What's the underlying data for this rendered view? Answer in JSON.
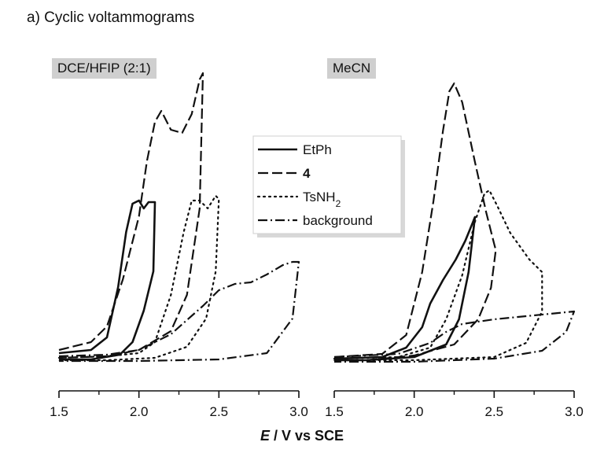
{
  "figure_title": "a) Cyclic voltammograms",
  "xlabel": {
    "variable": "E",
    "rest": " / V vs SCE"
  },
  "legend": {
    "entries": [
      {
        "key": "EtPh",
        "text": "EtPh",
        "style": "solid"
      },
      {
        "key": "4",
        "text": "4",
        "style": "dashed",
        "bold": true
      },
      {
        "key": "TsNH2",
        "text": "TsNH",
        "sub": "2",
        "style": "dotted"
      },
      {
        "key": "background",
        "text": "background",
        "style": "dashdot"
      }
    ]
  },
  "chart_data": [
    {
      "type": "line",
      "panel_label": "DCE/HFIP (2:1)",
      "xlim": [
        1.5,
        3.0
      ],
      "x_ticks": [
        "1.5",
        "2.0",
        "2.5",
        "3.0"
      ],
      "y_axis_visible": false,
      "series": [
        {
          "key": "EtPh",
          "style": "solid",
          "points": [
            [
              1.5,
              0.08
            ],
            [
              1.7,
              0.1
            ],
            [
              1.8,
              0.18
            ],
            [
              1.87,
              0.5
            ],
            [
              1.92,
              0.85
            ],
            [
              1.96,
              1.03
            ],
            [
              2.0,
              1.05
            ],
            [
              2.03,
              1.0
            ],
            [
              2.06,
              1.04
            ],
            [
              2.1,
              1.04
            ],
            [
              2.09,
              0.6
            ],
            [
              2.03,
              0.35
            ],
            [
              1.96,
              0.15
            ],
            [
              1.88,
              0.07
            ],
            [
              1.7,
              0.04
            ],
            [
              1.5,
              0.04
            ]
          ]
        },
        {
          "key": "4",
          "style": "dashed",
          "points": [
            [
              1.5,
              0.1
            ],
            [
              1.7,
              0.15
            ],
            [
              1.8,
              0.25
            ],
            [
              1.9,
              0.55
            ],
            [
              2.0,
              0.95
            ],
            [
              2.05,
              1.3
            ],
            [
              2.1,
              1.55
            ],
            [
              2.14,
              1.62
            ],
            [
              2.2,
              1.5
            ],
            [
              2.27,
              1.48
            ],
            [
              2.33,
              1.6
            ],
            [
              2.38,
              1.82
            ],
            [
              2.4,
              1.86
            ],
            [
              2.38,
              1.0
            ],
            [
              2.3,
              0.45
            ],
            [
              2.2,
              0.22
            ],
            [
              2.0,
              0.1
            ],
            [
              1.8,
              0.06
            ],
            [
              1.5,
              0.05
            ]
          ]
        },
        {
          "key": "TsNH2",
          "style": "dotted",
          "points": [
            [
              1.5,
              0.05
            ],
            [
              1.8,
              0.06
            ],
            [
              2.0,
              0.08
            ],
            [
              2.1,
              0.15
            ],
            [
              2.2,
              0.45
            ],
            [
              2.28,
              0.85
            ],
            [
              2.33,
              1.05
            ],
            [
              2.38,
              1.05
            ],
            [
              2.43,
              1.0
            ],
            [
              2.48,
              1.08
            ],
            [
              2.5,
              1.06
            ],
            [
              2.48,
              0.6
            ],
            [
              2.42,
              0.3
            ],
            [
              2.3,
              0.12
            ],
            [
              2.1,
              0.05
            ],
            [
              1.8,
              0.035
            ],
            [
              1.5,
              0.035
            ]
          ]
        },
        {
          "key": "background",
          "style": "dashdot",
          "points": [
            [
              1.5,
              0.06
            ],
            [
              1.8,
              0.07
            ],
            [
              2.0,
              0.1
            ],
            [
              2.2,
              0.2
            ],
            [
              2.4,
              0.38
            ],
            [
              2.5,
              0.48
            ],
            [
              2.6,
              0.52
            ],
            [
              2.7,
              0.53
            ],
            [
              2.8,
              0.58
            ],
            [
              2.9,
              0.64
            ],
            [
              2.96,
              0.66
            ],
            [
              3.0,
              0.66
            ],
            [
              2.96,
              0.3
            ],
            [
              2.8,
              0.08
            ],
            [
              2.5,
              0.04
            ],
            [
              2.0,
              0.03
            ],
            [
              1.5,
              0.03
            ]
          ]
        }
      ]
    },
    {
      "type": "line",
      "panel_label": "MeCN",
      "xlim": [
        1.5,
        3.0
      ],
      "x_ticks": [
        "1.5",
        "2.0",
        "2.5",
        "3.0"
      ],
      "y_axis_visible": false,
      "series": [
        {
          "key": "EtPh",
          "style": "solid",
          "points": [
            [
              1.5,
              0.05
            ],
            [
              1.8,
              0.06
            ],
            [
              1.95,
              0.12
            ],
            [
              2.05,
              0.25
            ],
            [
              2.1,
              0.4
            ],
            [
              2.18,
              0.55
            ],
            [
              2.26,
              0.68
            ],
            [
              2.32,
              0.8
            ],
            [
              2.36,
              0.9
            ],
            [
              2.38,
              0.95
            ],
            [
              2.34,
              0.6
            ],
            [
              2.28,
              0.3
            ],
            [
              2.2,
              0.14
            ],
            [
              2.0,
              0.06
            ],
            [
              1.7,
              0.04
            ],
            [
              1.5,
              0.04
            ]
          ]
        },
        {
          "key": "4",
          "style": "dashed",
          "points": [
            [
              1.5,
              0.06
            ],
            [
              1.8,
              0.08
            ],
            [
              1.95,
              0.2
            ],
            [
              2.05,
              0.6
            ],
            [
              2.12,
              1.05
            ],
            [
              2.18,
              1.5
            ],
            [
              2.22,
              1.75
            ],
            [
              2.25,
              1.8
            ],
            [
              2.3,
              1.68
            ],
            [
              2.38,
              1.3
            ],
            [
              2.45,
              0.98
            ],
            [
              2.5,
              0.78
            ],
            [
              2.51,
              0.74
            ],
            [
              2.48,
              0.5
            ],
            [
              2.4,
              0.3
            ],
            [
              2.25,
              0.14
            ],
            [
              2.0,
              0.07
            ],
            [
              1.7,
              0.04
            ],
            [
              1.5,
              0.04
            ]
          ]
        },
        {
          "key": "TsNH2",
          "style": "dotted",
          "points": [
            [
              1.5,
              0.05
            ],
            [
              1.9,
              0.06
            ],
            [
              2.1,
              0.12
            ],
            [
              2.2,
              0.3
            ],
            [
              2.3,
              0.58
            ],
            [
              2.38,
              0.92
            ],
            [
              2.44,
              1.1
            ],
            [
              2.47,
              1.12
            ],
            [
              2.52,
              1.02
            ],
            [
              2.6,
              0.85
            ],
            [
              2.72,
              0.68
            ],
            [
              2.8,
              0.6
            ],
            [
              2.8,
              0.35
            ],
            [
              2.7,
              0.15
            ],
            [
              2.5,
              0.06
            ],
            [
              2.0,
              0.04
            ],
            [
              1.5,
              0.04
            ]
          ]
        },
        {
          "key": "background",
          "style": "dashdot",
          "points": [
            [
              1.5,
              0.06
            ],
            [
              1.9,
              0.08
            ],
            [
              2.1,
              0.15
            ],
            [
              2.2,
              0.22
            ],
            [
              2.3,
              0.27
            ],
            [
              2.5,
              0.3
            ],
            [
              2.7,
              0.32
            ],
            [
              2.9,
              0.34
            ],
            [
              3.0,
              0.35
            ],
            [
              2.95,
              0.22
            ],
            [
              2.8,
              0.1
            ],
            [
              2.5,
              0.05
            ],
            [
              2.0,
              0.03
            ],
            [
              1.5,
              0.03
            ]
          ]
        }
      ]
    }
  ]
}
